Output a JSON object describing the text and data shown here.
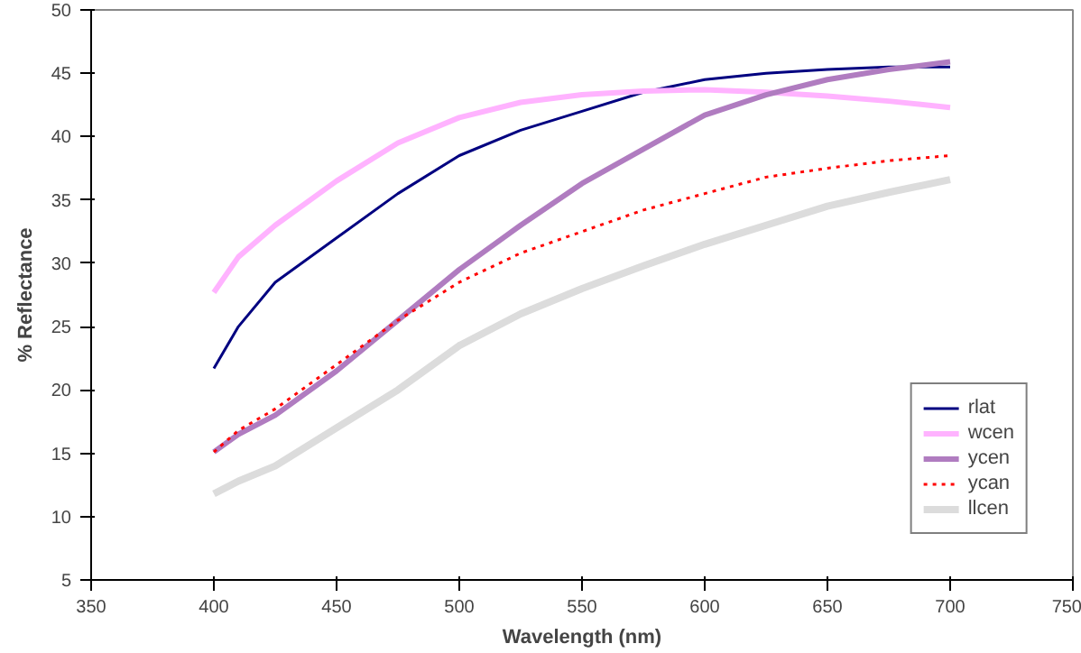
{
  "chart_data": {
    "type": "line",
    "xlabel": "Wavelength (nm)",
    "ylabel": "% Reflectance",
    "x": [
      400,
      410,
      425,
      450,
      475,
      500,
      525,
      550,
      575,
      600,
      625,
      650,
      675,
      700
    ],
    "xlim": [
      350,
      750
    ],
    "xticks": [
      350,
      400,
      450,
      500,
      550,
      600,
      650,
      700,
      750
    ],
    "ylim": [
      5,
      50
    ],
    "yticks": [
      5,
      10,
      15,
      20,
      25,
      30,
      35,
      40,
      45,
      50
    ],
    "grid": false,
    "legend": "bottom right",
    "marker": "none",
    "series": [
      {
        "name": "rlat",
        "color": "#000080",
        "line_style": "solid",
        "values": [
          21.7,
          25,
          28.5,
          32,
          35.5,
          38.5,
          40.5,
          42,
          43.5,
          44.5,
          45,
          45.3,
          45.5,
          45.5
        ]
      },
      {
        "name": "wcen",
        "color": "#ffb3ff",
        "line_style": "solid",
        "values": [
          27.7,
          30.5,
          33,
          36.5,
          39.5,
          41.5,
          42.7,
          43.3,
          43.6,
          43.7,
          43.5,
          43.2,
          42.8,
          42.3
        ]
      },
      {
        "name": "ycen",
        "color": "#b07cc0",
        "line_style": "solid",
        "values": [
          15.1,
          16.5,
          18,
          21.5,
          25.5,
          29.5,
          33,
          36.3,
          39,
          41.7,
          43.3,
          44.5,
          45.3,
          45.9
        ]
      },
      {
        "name": "ycan",
        "color": "#ff0000",
        "line_style": "dotted",
        "values": [
          15.1,
          16.8,
          18.5,
          22,
          25.5,
          28.5,
          30.8,
          32.5,
          34.2,
          35.5,
          36.8,
          37.5,
          38.1,
          38.5
        ]
      },
      {
        "name": "llcen",
        "color": "#dcdcdc",
        "line_style": "solid",
        "values": [
          11.8,
          12.8,
          14,
          17,
          20,
          23.5,
          26,
          28,
          29.8,
          31.5,
          33,
          34.5,
          35.6,
          36.6
        ]
      }
    ]
  }
}
